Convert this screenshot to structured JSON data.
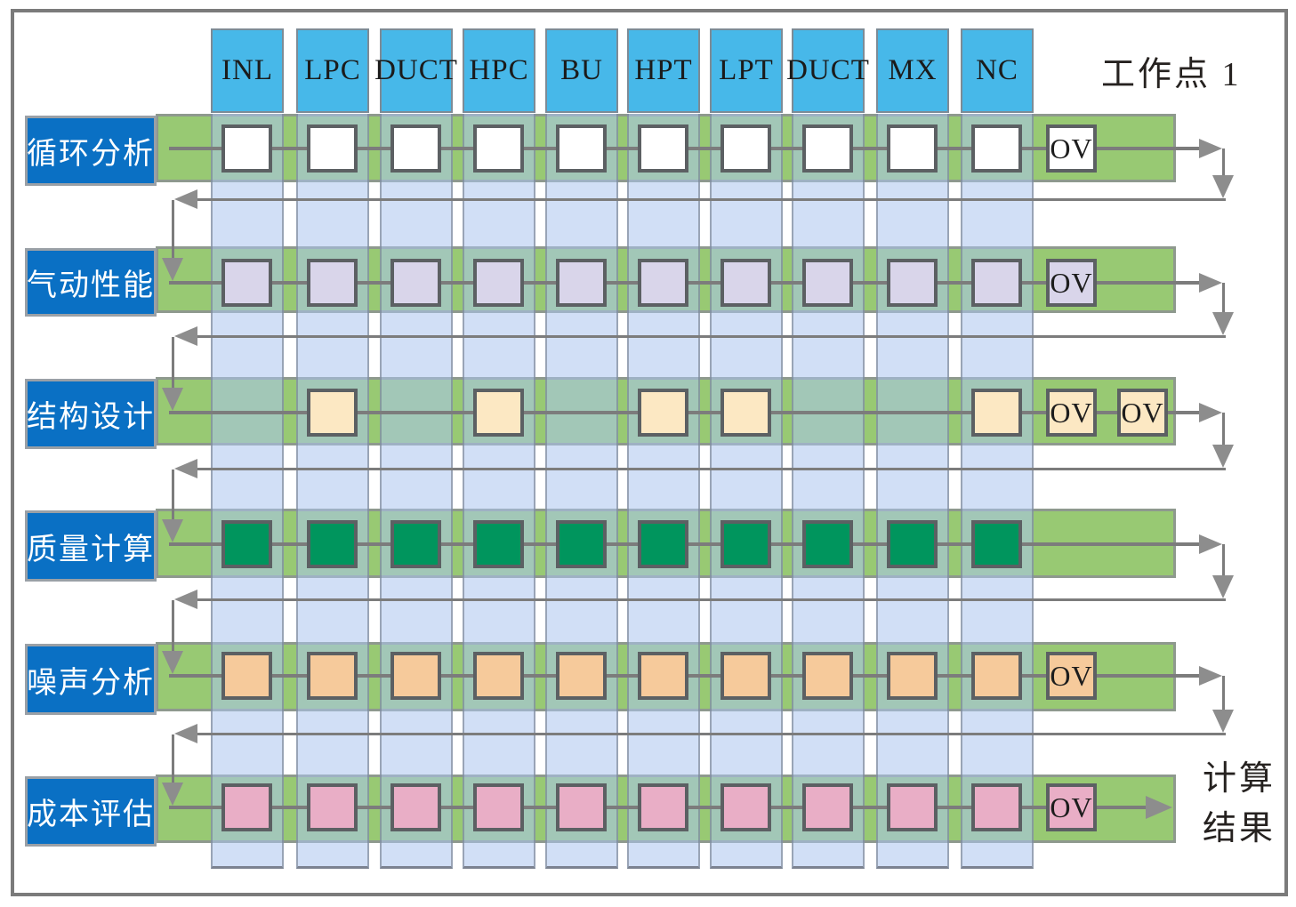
{
  "title_top_right": "工作点 1",
  "result_label": [
    "计算",
    "结果"
  ],
  "ov_label": "OV",
  "columns": [
    "INL",
    "LPC",
    "DUCT",
    "HPC",
    "BU",
    "HPT",
    "LPT",
    "DUCT",
    "MX",
    "NC"
  ],
  "rows": [
    {
      "label": "循环分析",
      "square_color": "#ffffff",
      "active_columns": [
        0,
        1,
        2,
        3,
        4,
        5,
        6,
        7,
        8,
        9
      ],
      "ov_count": 1,
      "feedback_to_next": true,
      "final_output": false
    },
    {
      "label": "气动性能",
      "square_color": "#d9d5ea",
      "active_columns": [
        0,
        1,
        2,
        3,
        4,
        5,
        6,
        7,
        8,
        9
      ],
      "ov_count": 1,
      "feedback_to_next": true,
      "final_output": false
    },
    {
      "label": "结构设计",
      "square_color": "#fce8c3",
      "active_columns": [
        1,
        3,
        5,
        6,
        9
      ],
      "ov_count": 2,
      "feedback_to_next": true,
      "final_output": false
    },
    {
      "label": "质量计算",
      "square_color": "#00955d",
      "active_columns": [
        0,
        1,
        2,
        3,
        4,
        5,
        6,
        7,
        8,
        9
      ],
      "ov_count": 0,
      "feedback_to_next": true,
      "final_output": false
    },
    {
      "label": "噪声分析",
      "square_color": "#f6ca9b",
      "active_columns": [
        0,
        1,
        2,
        3,
        4,
        5,
        6,
        7,
        8,
        9
      ],
      "ov_count": 1,
      "feedback_to_next": true,
      "final_output": false
    },
    {
      "label": "成本评估",
      "square_color": "#e9aec6",
      "active_columns": [
        0,
        1,
        2,
        3,
        4,
        5,
        6,
        7,
        8,
        9
      ],
      "ov_count": 1,
      "feedback_to_next": false,
      "final_output": true
    }
  ],
  "colors": {
    "header_fill": "#47b8e9",
    "header_border": "#7d8b96",
    "header_text": "#1b1b1b",
    "label_fill": "#0a70c4",
    "label_border": "#9aa0a6",
    "label_text": "#ffffff",
    "band_green": "#98c973",
    "band_border": "#8e998e",
    "vband_fill": "rgba(172,197,238,0.55)",
    "vband_border": "rgba(115,125,140,0.6)",
    "vband_bottom_border": "rgba(95,100,110,0.75)",
    "line": "#7c7c7c",
    "arrow": "#8d8d8d",
    "square_border": "#5c6063",
    "ov_text": "#1d1d1d",
    "corner_text": "#262220",
    "figure_border": "#7b7b7b"
  }
}
